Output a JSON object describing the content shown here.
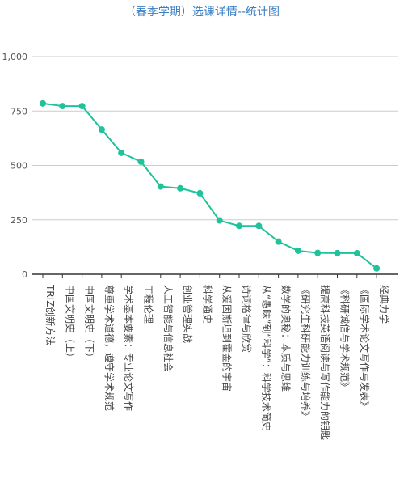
{
  "chart_data": {
    "type": "line",
    "title": "（春季学期）选课详情--统计图",
    "xlabel": "",
    "ylabel": "",
    "ylim": [
      0,
      1000
    ],
    "yticks": [
      "0",
      "250",
      "500",
      "750",
      "1,000"
    ],
    "grid": true,
    "colors": {
      "line": "#1fc29a",
      "title": "#3b7fc4",
      "grid": "#cccccc",
      "axis": "#333333"
    },
    "categories": [
      "TRIZ创新方法",
      "中国文明史（上）",
      "中国文明史（下）",
      "尊重学术道德，遵守学术规范",
      "学术基本要素：专业论文写作",
      "工程伦理",
      "人工智能与信息社会",
      "创业管理实战",
      "科学通史",
      "从爱因斯坦到霍金的宇宙",
      "诗词格律与欣赏",
      "从“愚昧”到“科学”：科学技术简史",
      "数学的奥秘：本质与思维",
      "《研究生科研能力训练与培养》",
      "提高科技英语阅读与写作能力的钥匙",
      "《科研诚信与学术规范》",
      "《国际学术论文写作与发表》",
      "经典力学"
    ],
    "values": [
      785,
      773,
      773,
      665,
      558,
      517,
      403,
      395,
      372,
      247,
      222,
      222,
      150,
      108,
      98,
      97,
      97,
      27
    ]
  }
}
